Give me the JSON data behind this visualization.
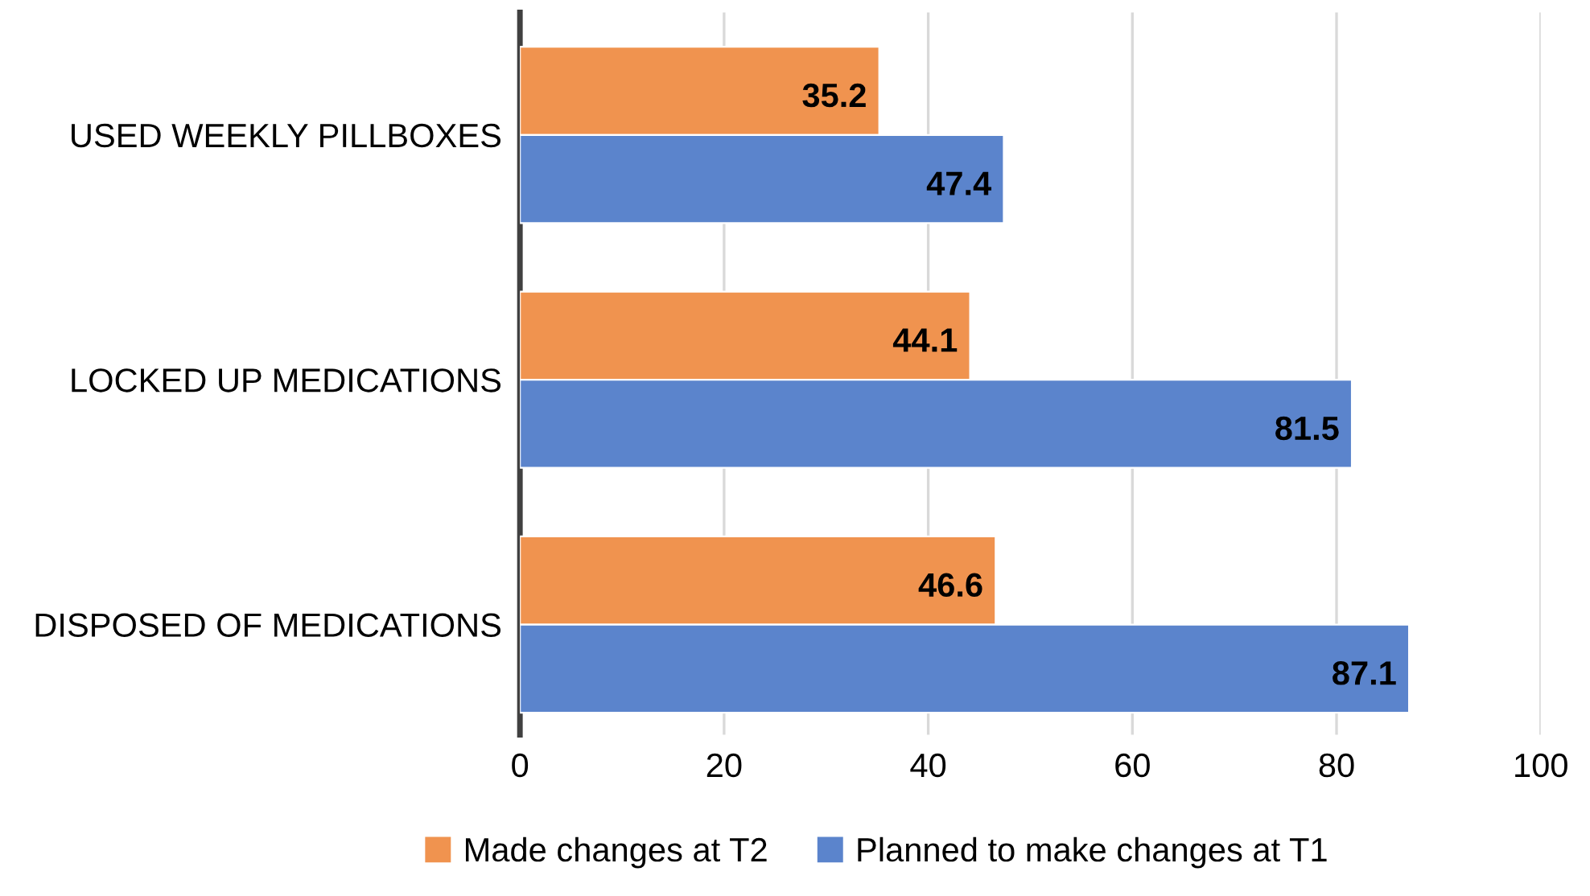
{
  "chart_data": {
    "type": "bar",
    "orientation": "horizontal",
    "categories": [
      "USED WEEKLY PILLBOXES",
      "LOCKED UP MEDICATIONS",
      "DISPOSED OF MEDICATIONS"
    ],
    "series": [
      {
        "name": "Made changes at T2",
        "color": "#f0934f",
        "values": [
          35.2,
          44.1,
          46.6
        ]
      },
      {
        "name": "Planned to make changes at T1",
        "color": "#5b84cc",
        "values": [
          47.4,
          81.5,
          87.1
        ]
      }
    ],
    "xlim": [
      0,
      100
    ],
    "xticks": [
      0,
      20,
      40,
      60,
      80,
      100
    ],
    "grid": "x",
    "legend": "bottom",
    "data_labels": true
  }
}
